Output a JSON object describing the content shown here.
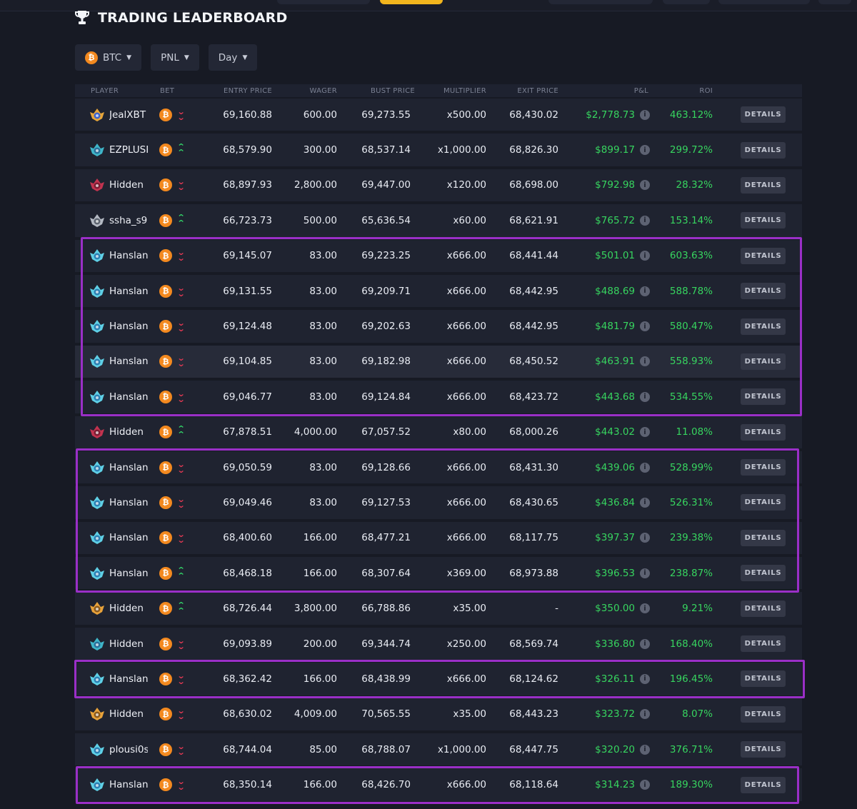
{
  "title": "TRADING LEADERBOARD",
  "filters": [
    {
      "label": "BTC"
    },
    {
      "label": "PNL"
    },
    {
      "label": "Day"
    }
  ],
  "columns": {
    "player": "PLAYER",
    "bet": "BET",
    "entry": "ENTRY PRICE",
    "wager": "WAGER",
    "bust": "BUST PRICE",
    "mult": "MULTIPLIER",
    "exit": "EXIT PRICE",
    "pnl": "P&L",
    "roi": "ROI"
  },
  "details_label": "DETAILS",
  "info_glyph": "i",
  "coin_glyph": "₿",
  "colors": {
    "profit": "#37d55f",
    "bet_down": "#ef3a55",
    "bet_up": "#33d96a",
    "highlight_box": "#9a2fc7",
    "btc": "#f3891f"
  },
  "rows": [
    {
      "player": "JealXBT",
      "avatar": "gold",
      "dir": "down",
      "entry": "69,160.88",
      "wager": "600.00",
      "bust": "69,273.55",
      "mult": "x500.00",
      "exit": "68,430.02",
      "pnl": "$2,778.73",
      "roi": "463.12%"
    },
    {
      "player": "EZPLUSPLUS",
      "avatar": "teal",
      "dir": "up",
      "entry": "68,579.90",
      "wager": "300.00",
      "bust": "68,537.14",
      "mult": "x1,000.00",
      "exit": "68,826.30",
      "pnl": "$899.17",
      "roi": "299.72%"
    },
    {
      "player": "Hidden",
      "avatar": "red",
      "dir": "down",
      "entry": "68,897.93",
      "wager": "2,800.00",
      "bust": "69,447.00",
      "mult": "x120.00",
      "exit": "68,698.00",
      "pnl": "$792.98",
      "roi": "28.32%"
    },
    {
      "player": "ssha_s9",
      "avatar": "silver",
      "dir": "up",
      "entry": "66,723.73",
      "wager": "500.00",
      "bust": "65,636.54",
      "mult": "x60.00",
      "exit": "68,621.91",
      "pnl": "$765.72",
      "roi": "153.14%"
    },
    {
      "player": "Hanslanda",
      "avatar": "cyan",
      "dir": "down",
      "entry": "69,145.07",
      "wager": "83.00",
      "bust": "69,223.25",
      "mult": "x666.00",
      "exit": "68,441.44",
      "pnl": "$501.01",
      "roi": "603.63%"
    },
    {
      "player": "Hanslanda",
      "avatar": "cyan",
      "dir": "down",
      "entry": "69,131.55",
      "wager": "83.00",
      "bust": "69,209.71",
      "mult": "x666.00",
      "exit": "68,442.95",
      "pnl": "$488.69",
      "roi": "588.78%"
    },
    {
      "player": "Hanslanda",
      "avatar": "cyan",
      "dir": "down",
      "entry": "69,124.48",
      "wager": "83.00",
      "bust": "69,202.63",
      "mult": "x666.00",
      "exit": "68,442.95",
      "pnl": "$481.79",
      "roi": "580.47%"
    },
    {
      "player": "Hanslanda",
      "avatar": "cyan",
      "dir": "down",
      "entry": "69,104.85",
      "wager": "83.00",
      "bust": "69,182.98",
      "mult": "x666.00",
      "exit": "68,450.52",
      "pnl": "$463.91",
      "roi": "558.93%",
      "hover": true
    },
    {
      "player": "Hanslanda",
      "avatar": "cyan",
      "dir": "down",
      "entry": "69,046.77",
      "wager": "83.00",
      "bust": "69,124.84",
      "mult": "x666.00",
      "exit": "68,423.72",
      "pnl": "$443.68",
      "roi": "534.55%"
    },
    {
      "player": "Hidden",
      "avatar": "red",
      "dir": "up",
      "entry": "67,878.51",
      "wager": "4,000.00",
      "bust": "67,057.52",
      "mult": "x80.00",
      "exit": "68,000.26",
      "pnl": "$443.02",
      "roi": "11.08%"
    },
    {
      "player": "Hanslanda",
      "avatar": "cyan",
      "dir": "down",
      "entry": "69,050.59",
      "wager": "83.00",
      "bust": "69,128.66",
      "mult": "x666.00",
      "exit": "68,431.30",
      "pnl": "$439.06",
      "roi": "528.99%"
    },
    {
      "player": "Hanslanda",
      "avatar": "cyan",
      "dir": "down",
      "entry": "69,049.46",
      "wager": "83.00",
      "bust": "69,127.53",
      "mult": "x666.00",
      "exit": "68,430.65",
      "pnl": "$436.84",
      "roi": "526.31%"
    },
    {
      "player": "Hanslanda",
      "avatar": "cyan",
      "dir": "down",
      "entry": "68,400.60",
      "wager": "166.00",
      "bust": "68,477.21",
      "mult": "x666.00",
      "exit": "68,117.75",
      "pnl": "$397.37",
      "roi": "239.38%"
    },
    {
      "player": "Hanslanda",
      "avatar": "cyan",
      "dir": "up",
      "entry": "68,468.18",
      "wager": "166.00",
      "bust": "68,307.64",
      "mult": "x369.00",
      "exit": "68,973.88",
      "pnl": "$396.53",
      "roi": "238.87%"
    },
    {
      "player": "Hidden",
      "avatar": "gold2",
      "dir": "up",
      "entry": "68,726.44",
      "wager": "3,800.00",
      "bust": "66,788.86",
      "mult": "x35.00",
      "exit": "-",
      "pnl": "$350.00",
      "roi": "9.21%"
    },
    {
      "player": "Hidden",
      "avatar": "teal",
      "dir": "down",
      "entry": "69,093.89",
      "wager": "200.00",
      "bust": "69,344.74",
      "mult": "x250.00",
      "exit": "68,569.74",
      "pnl": "$336.80",
      "roi": "168.40%"
    },
    {
      "player": "Hanslanda",
      "avatar": "cyan",
      "dir": "down",
      "entry": "68,362.42",
      "wager": "166.00",
      "bust": "68,438.99",
      "mult": "x666.00",
      "exit": "68,124.62",
      "pnl": "$326.11",
      "roi": "196.45%"
    },
    {
      "player": "Hidden",
      "avatar": "gold2",
      "dir": "down",
      "entry": "68,630.02",
      "wager": "4,009.00",
      "bust": "70,565.55",
      "mult": "x35.00",
      "exit": "68,443.23",
      "pnl": "$323.72",
      "roi": "8.07%"
    },
    {
      "player": "plousi0s",
      "avatar": "cyan",
      "dir": "down",
      "entry": "68,744.04",
      "wager": "85.00",
      "bust": "68,788.07",
      "mult": "x1,000.00",
      "exit": "68,447.75",
      "pnl": "$320.20",
      "roi": "376.71%"
    },
    {
      "player": "Hanslanda",
      "avatar": "cyan",
      "dir": "down",
      "entry": "68,350.14",
      "wager": "166.00",
      "bust": "68,426.70",
      "mult": "x666.00",
      "exit": "68,118.64",
      "pnl": "$314.23",
      "roi": "189.30%"
    }
  ],
  "highlight_groups": [
    {
      "from_row": 4,
      "to_row": 8
    },
    {
      "from_row": 10,
      "to_row": 13
    },
    {
      "from_row": 16,
      "to_row": 16
    },
    {
      "from_row": 19,
      "to_row": 19
    }
  ]
}
